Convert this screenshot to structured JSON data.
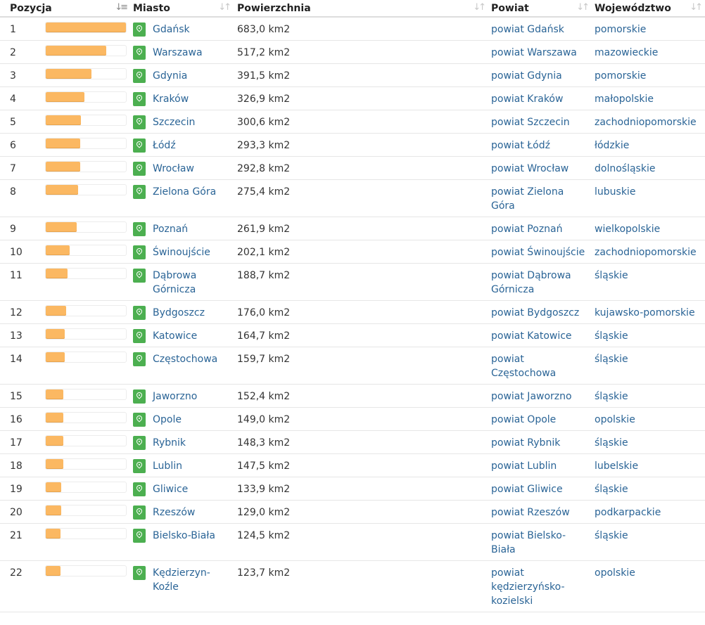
{
  "header": {
    "pozycja": "Pozycja",
    "miasto": "Miasto",
    "powierzchnia": "Powierzchnia",
    "powiat": "Powiat",
    "wojewodztwo": "Województwo"
  },
  "rows": [
    {
      "pos": "1",
      "fill": 1.0,
      "city": "Gdańsk",
      "area": "683,0 km2",
      "powiat": "powiat Gdańsk",
      "woj": "pomorskie"
    },
    {
      "pos": "2",
      "fill": 0.757,
      "city": "Warszawa",
      "area": "517,2 km2",
      "powiat": "powiat Warszawa",
      "woj": "mazowieckie"
    },
    {
      "pos": "3",
      "fill": 0.573,
      "city": "Gdynia",
      "area": "391,5 km2",
      "powiat": "powiat Gdynia",
      "woj": "pomorskie"
    },
    {
      "pos": "4",
      "fill": 0.479,
      "city": "Kraków",
      "area": "326,9 km2",
      "powiat": "powiat Kraków",
      "woj": "małopolskie"
    },
    {
      "pos": "5",
      "fill": 0.44,
      "city": "Szczecin",
      "area": "300,6 km2",
      "powiat": "powiat Szczecin",
      "woj": "zachodniopomorskie"
    },
    {
      "pos": "6",
      "fill": 0.429,
      "city": "Łódź",
      "area": "293,3 km2",
      "powiat": "powiat Łódź",
      "woj": "łódzkie"
    },
    {
      "pos": "7",
      "fill": 0.429,
      "city": "Wrocław",
      "area": "292,8 km2",
      "powiat": "powiat Wrocław",
      "woj": "dolnośląskie"
    },
    {
      "pos": "8",
      "fill": 0.403,
      "city": "Zielona Góra",
      "area": "275,4 km2",
      "powiat": "powiat Zielona Góra",
      "woj": "lubuskie"
    },
    {
      "pos": "9",
      "fill": 0.383,
      "city": "Poznań",
      "area": "261,9 km2",
      "powiat": "powiat Poznań",
      "woj": "wielkopolskie"
    },
    {
      "pos": "10",
      "fill": 0.296,
      "city": "Świnoujście",
      "area": "202,1 km2",
      "powiat": "powiat Świnoujście",
      "woj": "zachodniopomorskie"
    },
    {
      "pos": "11",
      "fill": 0.276,
      "city": "Dąbrowa Górnicza",
      "area": "188,7 km2",
      "powiat": "powiat Dąbrowa Górnicza",
      "woj": "śląskie"
    },
    {
      "pos": "12",
      "fill": 0.258,
      "city": "Bydgoszcz",
      "area": "176,0 km2",
      "powiat": "powiat Bydgoszcz",
      "woj": "kujawsko-pomorskie"
    },
    {
      "pos": "13",
      "fill": 0.241,
      "city": "Katowice",
      "area": "164,7 km2",
      "powiat": "powiat Katowice",
      "woj": "śląskie"
    },
    {
      "pos": "14",
      "fill": 0.234,
      "city": "Częstochowa",
      "area": "159,7 km2",
      "powiat": "powiat Częstochowa",
      "woj": "śląskie"
    },
    {
      "pos": "15",
      "fill": 0.223,
      "city": "Jaworzno",
      "area": "152,4 km2",
      "powiat": "powiat Jaworzno",
      "woj": "śląskie"
    },
    {
      "pos": "16",
      "fill": 0.218,
      "city": "Opole",
      "area": "149,0 km2",
      "powiat": "powiat Opole",
      "woj": "opolskie"
    },
    {
      "pos": "17",
      "fill": 0.217,
      "city": "Rybnik",
      "area": "148,3 km2",
      "powiat": "powiat Rybnik",
      "woj": "śląskie"
    },
    {
      "pos": "18",
      "fill": 0.216,
      "city": "Lublin",
      "area": "147,5 km2",
      "powiat": "powiat Lublin",
      "woj": "lubelskie"
    },
    {
      "pos": "19",
      "fill": 0.196,
      "city": "Gliwice",
      "area": "133,9 km2",
      "powiat": "powiat Gliwice",
      "woj": "śląskie"
    },
    {
      "pos": "20",
      "fill": 0.189,
      "city": "Rzeszów",
      "area": "129,0 km2",
      "powiat": "powiat Rzeszów",
      "woj": "podkarpackie"
    },
    {
      "pos": "21",
      "fill": 0.182,
      "city": "Bielsko-Biała",
      "area": "124,5 km2",
      "powiat": "powiat Bielsko-Biała",
      "woj": "śląskie"
    },
    {
      "pos": "22",
      "fill": 0.181,
      "city": "Kędzierzyn-Koźle",
      "area": "123,7 km2",
      "powiat": "powiat kędzierzyńsko-kozielski",
      "woj": "opolskie"
    }
  ],
  "colors": {
    "bar": "#fbb862",
    "pin": "#4caf50",
    "link": "#2a6496"
  },
  "icons": {
    "sort_active": "sort-amount-down-icon",
    "sort_inactive": "sort-icon",
    "pin": "map-marker-icon"
  }
}
